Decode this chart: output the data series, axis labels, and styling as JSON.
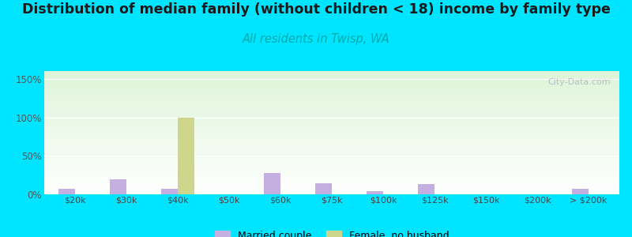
{
  "title": "Distribution of median family (without children < 18) income by family type",
  "subtitle": "All residents in Twisp, WA",
  "categories": [
    "$20k",
    "$30k",
    "$40k",
    "$50k",
    "$60k",
    "$75k",
    "$100k",
    "$125k",
    "$150k",
    "$200k",
    "> $200k"
  ],
  "married_couple": [
    7,
    20,
    7,
    0,
    28,
    14,
    4,
    13,
    0,
    0,
    7
  ],
  "female_no_husband": [
    0,
    0,
    100,
    0,
    0,
    0,
    0,
    0,
    0,
    0,
    0
  ],
  "married_color": "#c5aee0",
  "female_color": "#cdd68a",
  "bar_width": 0.32,
  "ylim": [
    0,
    160
  ],
  "yticks": [
    0,
    50,
    100,
    150
  ],
  "ytick_labels": [
    "0%",
    "50%",
    "100%",
    "150%"
  ],
  "bg_color": "#00e5ff",
  "title_fontsize": 12.5,
  "subtitle_fontsize": 10.5,
  "subtitle_color": "#00aaaa",
  "watermark": "City-Data.com",
  "legend_married": "Married couple",
  "legend_female": "Female, no husband"
}
